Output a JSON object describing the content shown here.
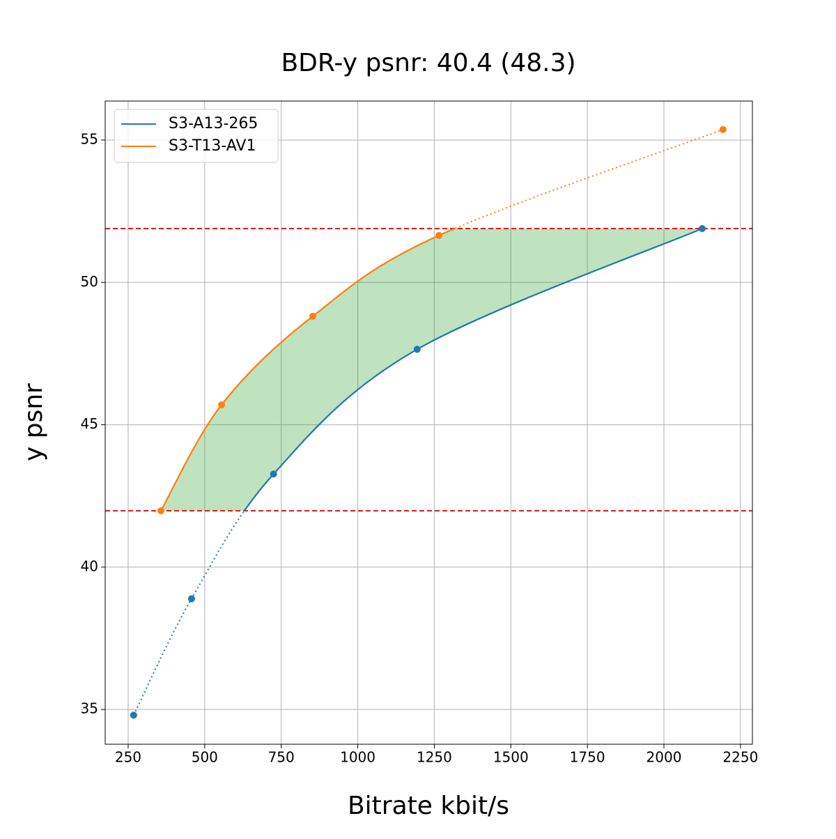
{
  "chart_data": {
    "type": "line",
    "title": "BDR-y psnr: 40.4 (48.3)",
    "x_label": "Bitrate kbit/s",
    "y_label": "y psnr",
    "series": [
      {
        "name": "S3-A13-265",
        "color": "#1f77b4",
        "x": [
          268,
          457,
          725,
          1194,
          2125
        ],
        "values": [
          34.8,
          38.89,
          43.27,
          47.65,
          51.89
        ]
      },
      {
        "name": "S3-T13-AV1",
        "color": "#ff7f0e",
        "x": [
          357,
          555,
          853,
          1265,
          2193
        ],
        "values": [
          41.98,
          45.7,
          48.81,
          51.65,
          55.37
        ]
      }
    ],
    "hlines": [
      41.98,
      51.89
    ],
    "hline_color": "#e41a1c",
    "fill_color": "#2ca02c",
    "xlim": [
      175,
      2289
    ],
    "ylim": [
      33.78,
      56.37
    ],
    "xticks": [
      250,
      500,
      750,
      1000,
      1250,
      1500,
      1750,
      2000,
      2250
    ],
    "yticks": [
      35,
      40,
      45,
      50,
      55
    ],
    "grid": true,
    "legend": "upper-left"
  }
}
